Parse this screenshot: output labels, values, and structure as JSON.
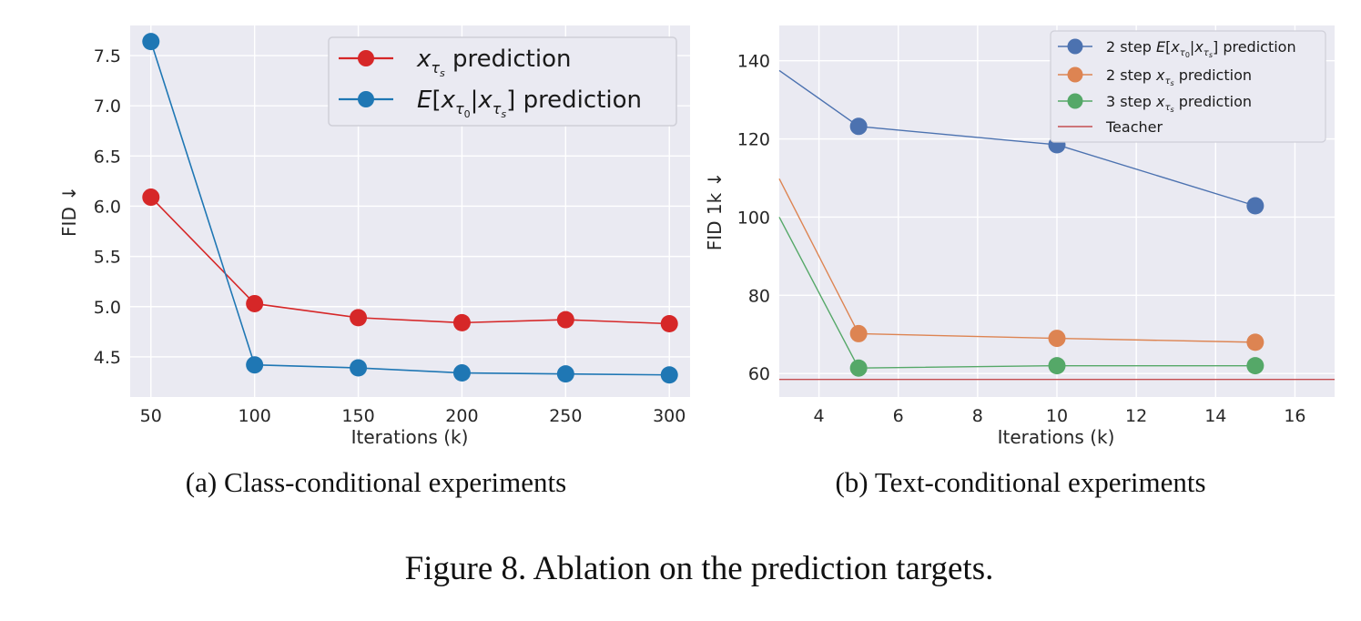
{
  "chart_data": [
    {
      "type": "line",
      "xlabel": "Iterations (k)",
      "ylabel": "FID ↓",
      "xlim": [
        40,
        310
      ],
      "ylim": [
        4.1,
        7.8
      ],
      "xticks": [
        50,
        100,
        150,
        200,
        250,
        300
      ],
      "yticks": [
        4.5,
        5.0,
        5.5,
        6.0,
        6.5,
        7.0,
        7.5
      ],
      "grid": true,
      "legend_position": "top-right",
      "caption": "(a) Class-conditional experiments",
      "series": [
        {
          "name": "x_{τ_s} prediction",
          "color": "#d62728",
          "x": [
            50,
            100,
            150,
            200,
            250,
            300
          ],
          "y": [
            6.09,
            5.03,
            4.89,
            4.84,
            4.87,
            4.83
          ]
        },
        {
          "name": "E[x_{τ_0}|x_{τ_s}] prediction",
          "color": "#1f77b4",
          "x": [
            50,
            100,
            150,
            200,
            250,
            300
          ],
          "y": [
            7.64,
            4.42,
            4.39,
            4.34,
            4.33,
            4.32
          ]
        }
      ]
    },
    {
      "type": "line",
      "xlabel": "Iterations (k)",
      "ylabel": "FID 1k ↓",
      "xlim": [
        3,
        17
      ],
      "ylim": [
        54,
        149
      ],
      "xticks": [
        4,
        6,
        8,
        10,
        12,
        14,
        16
      ],
      "yticks": [
        60,
        80,
        100,
        120,
        140
      ],
      "grid": true,
      "legend_position": "top-right",
      "caption": "(b) Text-conditional experiments",
      "series": [
        {
          "name": "2 step E[x_{τ_0}|x_{τ_s}] prediction",
          "color": "#4c72b0",
          "x": [
            5,
            10,
            15
          ],
          "y": [
            123.2,
            118.5,
            102.9
          ],
          "line_start": [
            3,
            137.5
          ]
        },
        {
          "name": "2 step x_{τ_s} prediction",
          "color": "#dd8452",
          "x": [
            5,
            10,
            15
          ],
          "y": [
            70.2,
            69.0,
            68.0
          ],
          "line_start": [
            3,
            109.8
          ]
        },
        {
          "name": "3 step x_{τ_s} prediction",
          "color": "#55a868",
          "x": [
            5,
            10,
            15
          ],
          "y": [
            61.4,
            62.0,
            62.0
          ],
          "line_start": [
            3,
            100.0
          ]
        },
        {
          "name": "Teacher",
          "color": "#c44e52",
          "type": "hline",
          "y": 58.5
        }
      ]
    }
  ],
  "figure_caption": "Figure 8. Ablation on the prediction targets."
}
